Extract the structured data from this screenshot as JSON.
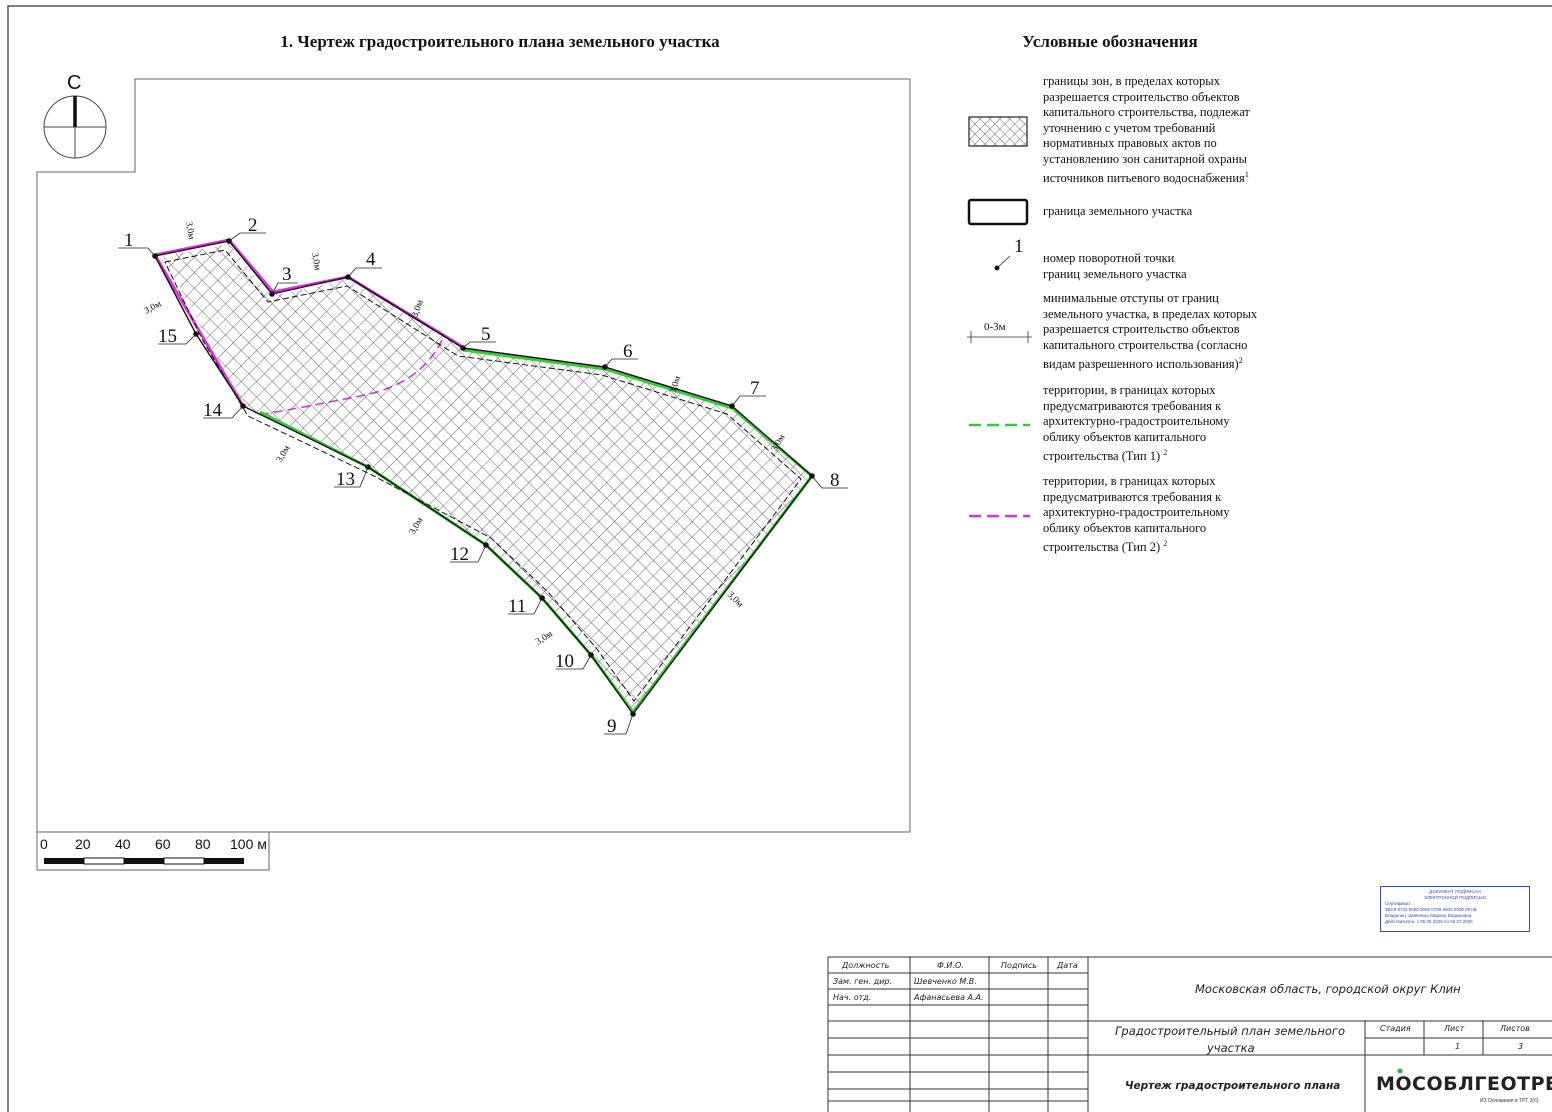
{
  "map": {
    "title": "1. Чертеж градостроительного плана земельного участка",
    "north_letter": "С",
    "point_numbers": [
      "1",
      "2",
      "3",
      "4",
      "5",
      "6",
      "7",
      "8",
      "9",
      "10",
      "11",
      "12",
      "13",
      "14",
      "15"
    ],
    "setback_label": "3,0м",
    "scale": {
      "ticks": [
        "0",
        "20",
        "40",
        "60",
        "80",
        "100 м"
      ]
    }
  },
  "legend": {
    "title": "Условные обозначения",
    "items": [
      {
        "lines": [
          "границы зон, в пределах которых",
          "разрешается строительство объектов",
          "капитального строительства, подлежат",
          "уточнению с учетом требований",
          "нормативных правовых актов по",
          "установлению зон санитарной охраны",
          "источников питьевого водоснабжения"
        ],
        "note": "1"
      },
      {
        "lines": [
          "граница земельного участка"
        ]
      },
      {
        "symbol_number": "1",
        "lines": [
          "номер поворотной точки",
          "границ земельного участка"
        ]
      },
      {
        "symbol_label": "0-3м",
        "lines": [
          "минимальные отступы от границ",
          "земельного участка, в пределах которых",
          "разрешается строительство объектов",
          "капитального строительства (согласно",
          "видам разрешенного использования)"
        ],
        "note": "2"
      },
      {
        "lines": [
          "территории, в границах которых",
          "предусматриваются требования к",
          "архитектурно-градостроительному",
          "облику объектов капитального",
          "строительства (Тип 1)"
        ],
        "note": "2",
        "color": "#33cc33"
      },
      {
        "lines": [
          "территории, в границах которых",
          "предусматриваются требования к",
          "архитектурно-градостроительному",
          "облику объектов капитального",
          "строительства (Тип 2)"
        ],
        "note": "2",
        "color": "#dd33dd"
      }
    ]
  },
  "stamp": {
    "line1": "ДОКУМЕНТ ПОДПИСАН",
    "line2": "ЭЛЕКТРОННОЙ ПОДПИСЬЮ",
    "line3": "Сертификат:",
    "line4": "5BC9 8744 0000 0000 0789 0000 0000 0FCB",
    "line5": "Владелец: Шевченко Марина Вадимовна",
    "line6": "Действителен: с 06.05.2025 по 06.07.2026"
  },
  "title_block": {
    "headers": [
      "Должность",
      "Ф.И.О.",
      "Подпись",
      "Дата"
    ],
    "rows": [
      {
        "position": "Зам. ген. дир.",
        "name": "Шевченко М.В."
      },
      {
        "position": "Нач. отд.",
        "name": "Афанасьева А.А."
      }
    ],
    "location": "Московская область, городской округ Клин",
    "document": [
      "Градостроительный план земельного",
      "участка"
    ],
    "stage_headers": [
      "Стадия",
      "Лист",
      "Листов"
    ],
    "sheet": "1",
    "sheets": "3",
    "drawing_name": "Чертеж градостроительного плана",
    "company": "МОСОБЛГЕОТРЕСТ",
    "company_sub": "ИЗ Основания в ТРТ 3(6)"
  },
  "colors": {
    "type1_zone": "#33cc33",
    "type2_zone": "#dd33dd",
    "boundary": "#111111",
    "stamp": "#3a48b8"
  }
}
